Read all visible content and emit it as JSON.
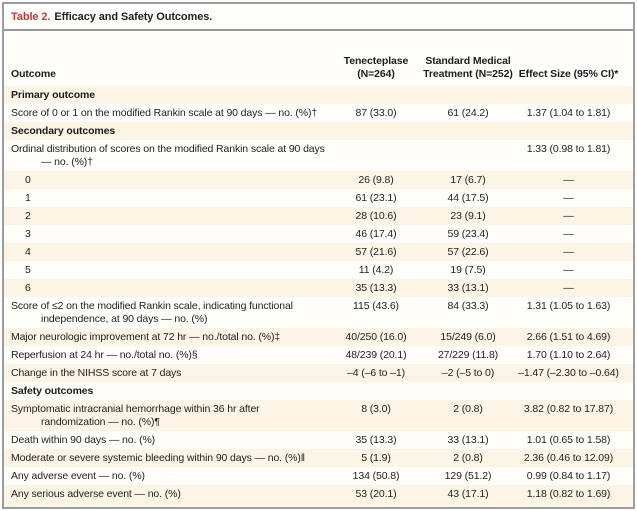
{
  "title": {
    "label": "Table 2.",
    "text": "Efficacy and Safety Outcomes."
  },
  "columns": {
    "outcome": "Outcome",
    "tenecteplase": "Tenecteplase (N=264)",
    "standard": "Standard Medical Treatment (N=252)",
    "effect": "Effect Size (95% CI)*"
  },
  "accent_colors": {
    "table_label_red": "#ce3133",
    "row_shade_cream": "#fcf4e5",
    "footnote_strip_gray": "#c6ced5"
  },
  "table": {
    "rows": [
      {
        "type": "section",
        "label": "Primary outcome",
        "t": "",
        "s": "",
        "e": ""
      },
      {
        "type": "data",
        "label": "Score of 0 or 1 on the modified Rankin scale at 90 days — no. (%)†",
        "t": "87 (33.0)",
        "s": "61 (24.2)",
        "e": "1.37 (1.04 to 1.81)"
      },
      {
        "type": "section",
        "label": "Secondary outcomes",
        "t": "",
        "s": "",
        "e": ""
      },
      {
        "type": "data",
        "label": "Ordinal distribution of scores on the modified Rankin scale at 90 days — no. (%)†",
        "t": "",
        "s": "",
        "e": "1.33 (0.98 to 1.81)"
      },
      {
        "type": "data",
        "indent": true,
        "label": "0",
        "t": "26 (9.8)",
        "s": "17 (6.7)",
        "e": "—"
      },
      {
        "type": "data",
        "indent": true,
        "label": "1",
        "t": "61 (23.1)",
        "s": "44 (17.5)",
        "e": "—"
      },
      {
        "type": "data",
        "indent": true,
        "label": "2",
        "t": "28 (10.6)",
        "s": "23 (9.1)",
        "e": "—"
      },
      {
        "type": "data",
        "indent": true,
        "label": "3",
        "t": "46 (17.4)",
        "s": "59 (23.4)",
        "e": "—"
      },
      {
        "type": "data",
        "indent": true,
        "label": "4",
        "t": "57 (21.6)",
        "s": "57 (22.6)",
        "e": "—"
      },
      {
        "type": "data",
        "indent": true,
        "label": "5",
        "t": "11 (4.2)",
        "s": "19 (7.5)",
        "e": "—"
      },
      {
        "type": "data",
        "indent": true,
        "label": "6",
        "t": "35 (13.3)",
        "s": "33 (13.1)",
        "e": "—"
      },
      {
        "type": "data",
        "label": "Score of ≤2 on the modified Rankin scale, indicating functional independence, at 90 days — no. (%)",
        "t": "115 (43.6)",
        "s": "84 (33.3)",
        "e": "1.31 (1.05 to 1.63)"
      },
      {
        "type": "data",
        "label": "Major neurologic improvement at 72 hr — no./total no. (%)‡",
        "t": "40/250 (16.0)",
        "s": "15/249 (6.0)",
        "e": "2.66 (1.51 to 4.69)"
      },
      {
        "type": "data",
        "label": "Reperfusion at 24 hr — no./total no. (%)§",
        "t": "48/239 (20.1)",
        "s": "27/229 (11.8)",
        "e": "1.70 (1.10 to 2.64)"
      },
      {
        "type": "data",
        "label": "Change in the NIHSS score at 7 days",
        "t": "–4 (–6 to –1)",
        "s": "–2 (–5 to 0)",
        "e": "–1.47 (–2.30 to –0.64)"
      },
      {
        "type": "section",
        "label": "Safety outcomes",
        "t": "",
        "s": "",
        "e": ""
      },
      {
        "type": "data",
        "label": "Symptomatic intracranial hemorrhage within 36 hr after randomization — no. (%)¶",
        "t": "8 (3.0)",
        "s": "2 (0.8)",
        "e": "3.82 (0.82 to 17.87)"
      },
      {
        "type": "data",
        "label": "Death within 90 days — no. (%)",
        "t": "35 (13.3)",
        "s": "33 (13.1)",
        "e": "1.01 (0.65 to 1.58)"
      },
      {
        "type": "data",
        "label": "Moderate or severe systemic bleeding within 90 days — no. (%)‖",
        "t": "5 (1.9)",
        "s": "2 (0.8)",
        "e": "2.36 (0.46 to 12.09)"
      },
      {
        "type": "data",
        "label": "Any adverse event — no. (%)",
        "t": "134 (50.8)",
        "s": "129 (51.2)",
        "e": "0.99 (0.84 to 1.17)"
      },
      {
        "type": "data",
        "label": "Any serious adverse event — no. (%)",
        "t": "53 (20.1)",
        "s": "43 (17.1)",
        "e": "1.18 (0.82 to 1.69)"
      }
    ]
  }
}
